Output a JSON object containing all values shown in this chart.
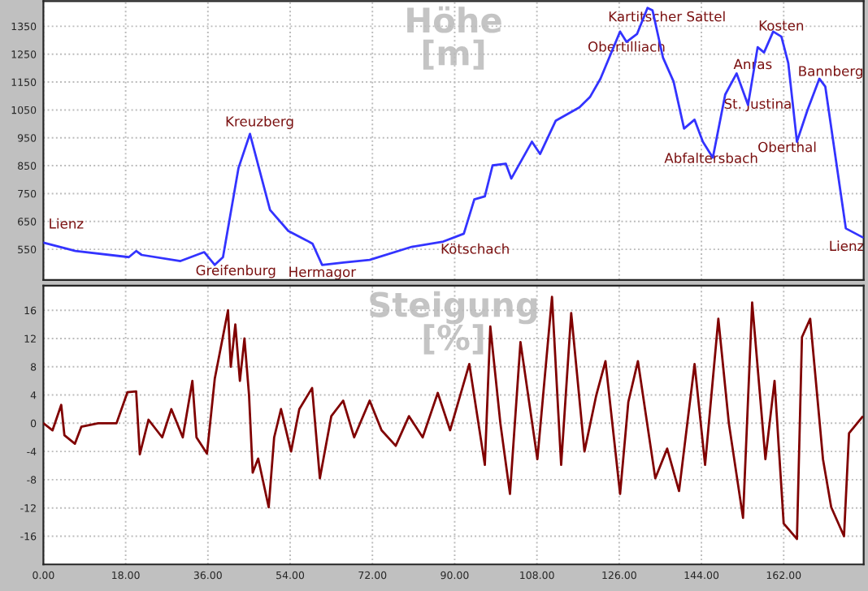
{
  "chart_data": [
    {
      "type": "line",
      "title": "Höhe\n[m]",
      "xlim": [
        0,
        179.5
      ],
      "ylim": [
        440,
        1440
      ],
      "grid": true,
      "tick_labels": "y",
      "xticks": [
        {
          "value": 0,
          "label": null
        },
        {
          "value": 18,
          "label": null
        },
        {
          "value": 36,
          "label": null
        },
        {
          "value": 54,
          "label": null
        },
        {
          "value": 72,
          "label": null
        },
        {
          "value": 90,
          "label": null
        },
        {
          "value": 108,
          "label": null
        },
        {
          "value": 126,
          "label": null
        },
        {
          "value": 144,
          "label": null
        },
        {
          "value": 162,
          "label": null
        }
      ],
      "yticks": [
        550,
        650,
        750,
        850,
        950,
        1050,
        1150,
        1250,
        1350
      ],
      "series": [
        {
          "color": "#3333ff",
          "x": [
            0,
            7,
            18.7,
            20.3,
            21.5,
            30,
            35.2,
            37.5,
            39.3,
            42.7,
            45.2,
            49.6,
            53.6,
            57.6,
            58.9,
            61,
            65.7,
            71.4,
            80.6,
            87.5,
            92,
            94.3,
            96.6,
            98.3,
            101.2,
            102.4,
            106.9,
            108.7,
            112.1,
            117.3,
            119.6,
            121.9,
            126.2,
            127.6,
            129.9,
            132.2,
            133.3,
            135.6,
            137.9,
            140.2,
            142.5,
            144.3,
            146.5,
            149.2,
            151.7,
            154.2,
            156.3,
            157.7,
            159.7,
            161.5,
            163,
            164.9,
            167.2,
            169.8,
            171.1,
            175.6,
            179.3
          ],
          "values": [
            574,
            544,
            522,
            544,
            530,
            508,
            540,
            494,
            522,
            842,
            964,
            691,
            616,
            582,
            570,
            494,
            503,
            512,
            559,
            578,
            606,
            729,
            740,
            851,
            857,
            804,
            936,
            892,
            1011,
            1059,
            1096,
            1162,
            1331,
            1294,
            1322,
            1416,
            1407,
            1237,
            1152,
            983,
            1015,
            936,
            879,
            1105,
            1181,
            1068,
            1275,
            1256,
            1331,
            1313,
            1218,
            936,
            1049,
            1162,
            1134,
            625,
            593
          ]
        }
      ],
      "annotations": [
        {
          "text": "Lienz",
          "x": 0,
          "y": 574
        },
        {
          "text": "Kreuzberg",
          "x": 45.2,
          "y": 964
        },
        {
          "text": "Greifenburg",
          "x": 37.5,
          "y": 494
        },
        {
          "text": "Hermagor",
          "x": 61,
          "y": 494
        },
        {
          "text": "Kötschach",
          "x": 92,
          "y": 606
        },
        {
          "text": "Obertilliach",
          "x": 126.2,
          "y": 1331
        },
        {
          "text": "Kartitscher Sattel",
          "x": 132.2,
          "y": 1416
        },
        {
          "text": "Anras",
          "x": 151.7,
          "y": 1181
        },
        {
          "text": "St. Justina",
          "x": 154.2,
          "y": 1068
        },
        {
          "text": "Kosten",
          "x": 159.7,
          "y": 1331
        },
        {
          "text": "Abfaltersbach",
          "x": 146.5,
          "y": 879
        },
        {
          "text": "Oberthal",
          "x": 164.9,
          "y": 936
        },
        {
          "text": "Bannberg",
          "x": 169.8,
          "y": 1162
        },
        {
          "text": "Lienz",
          "x": 179.3,
          "y": 593
        }
      ]
    },
    {
      "type": "line",
      "title": "Steigung\n[%]",
      "xlim": [
        0,
        179.5
      ],
      "ylim": [
        -20,
        19.5
      ],
      "grid": true,
      "xticks": [
        {
          "value": 0,
          "label": "0.00"
        },
        {
          "value": 18,
          "label": "18.00"
        },
        {
          "value": 36,
          "label": "36.00"
        },
        {
          "value": 54,
          "label": "54.00"
        },
        {
          "value": 72,
          "label": "72.00"
        },
        {
          "value": 90,
          "label": "90.00"
        },
        {
          "value": 108,
          "label": "108.00"
        },
        {
          "value": 126,
          "label": "126.00"
        },
        {
          "value": 144,
          "label": "144.00"
        },
        {
          "value": 162,
          "label": "162.00"
        }
      ],
      "yticks": [
        -16,
        -12,
        -8,
        -4,
        0,
        4,
        8,
        12,
        16
      ],
      "series": [
        {
          "color": "#800000",
          "x": [
            0,
            2,
            3.9,
            4.6,
            6.9,
            8.3,
            12,
            16,
            18.4,
            20.3,
            21.1,
            23,
            26,
            28,
            30.5,
            32.6,
            33.5,
            35.8,
            37.5,
            40.4,
            41,
            42,
            43,
            44,
            45,
            45.8,
            47,
            49.3,
            50.5,
            52,
            54.2,
            56,
            58.8,
            60.5,
            63,
            65.6,
            68,
            71.4,
            74,
            77.1,
            80,
            83,
            86.3,
            89,
            93.2,
            96.6,
            97.8,
            100,
            102.1,
            104.4,
            108.1,
            111.3,
            113.3,
            115.5,
            118.4,
            121,
            123,
            126.2,
            128,
            130.1,
            133.9,
            136.5,
            139.1,
            142.5,
            144.8,
            147.7,
            150,
            153.1,
            155.1,
            158,
            160,
            162,
            164.9,
            166,
            167.8,
            170.6,
            172.4,
            175.2,
            176.3,
            179.2
          ],
          "values": [
            0,
            -1,
            2.6,
            -1.7,
            -2.9,
            -0.5,
            0,
            0,
            4.4,
            4.5,
            -4.4,
            0.5,
            -2,
            2,
            -2,
            6,
            -2,
            -4.3,
            6.3,
            16,
            8,
            14,
            6,
            12,
            4,
            -7,
            -5,
            -11.9,
            -2,
            2,
            -4,
            2,
            5,
            -7.8,
            1,
            3.2,
            -2,
            3.2,
            -1,
            -3.2,
            1,
            -2,
            4.3,
            -1,
            8.4,
            -5.9,
            13.7,
            0,
            -10,
            11.5,
            -5.1,
            17.9,
            -5.9,
            15.6,
            -4,
            4,
            8.8,
            -10,
            3,
            8.8,
            -7.8,
            -3.6,
            -9.6,
            8.4,
            -5.9,
            14.8,
            0,
            -13.4,
            17.1,
            -5.1,
            6,
            -14.2,
            -16.4,
            12.2,
            14.8,
            -5.1,
            -11.9,
            -16,
            -1.4,
            0.9
          ]
        }
      ]
    }
  ]
}
